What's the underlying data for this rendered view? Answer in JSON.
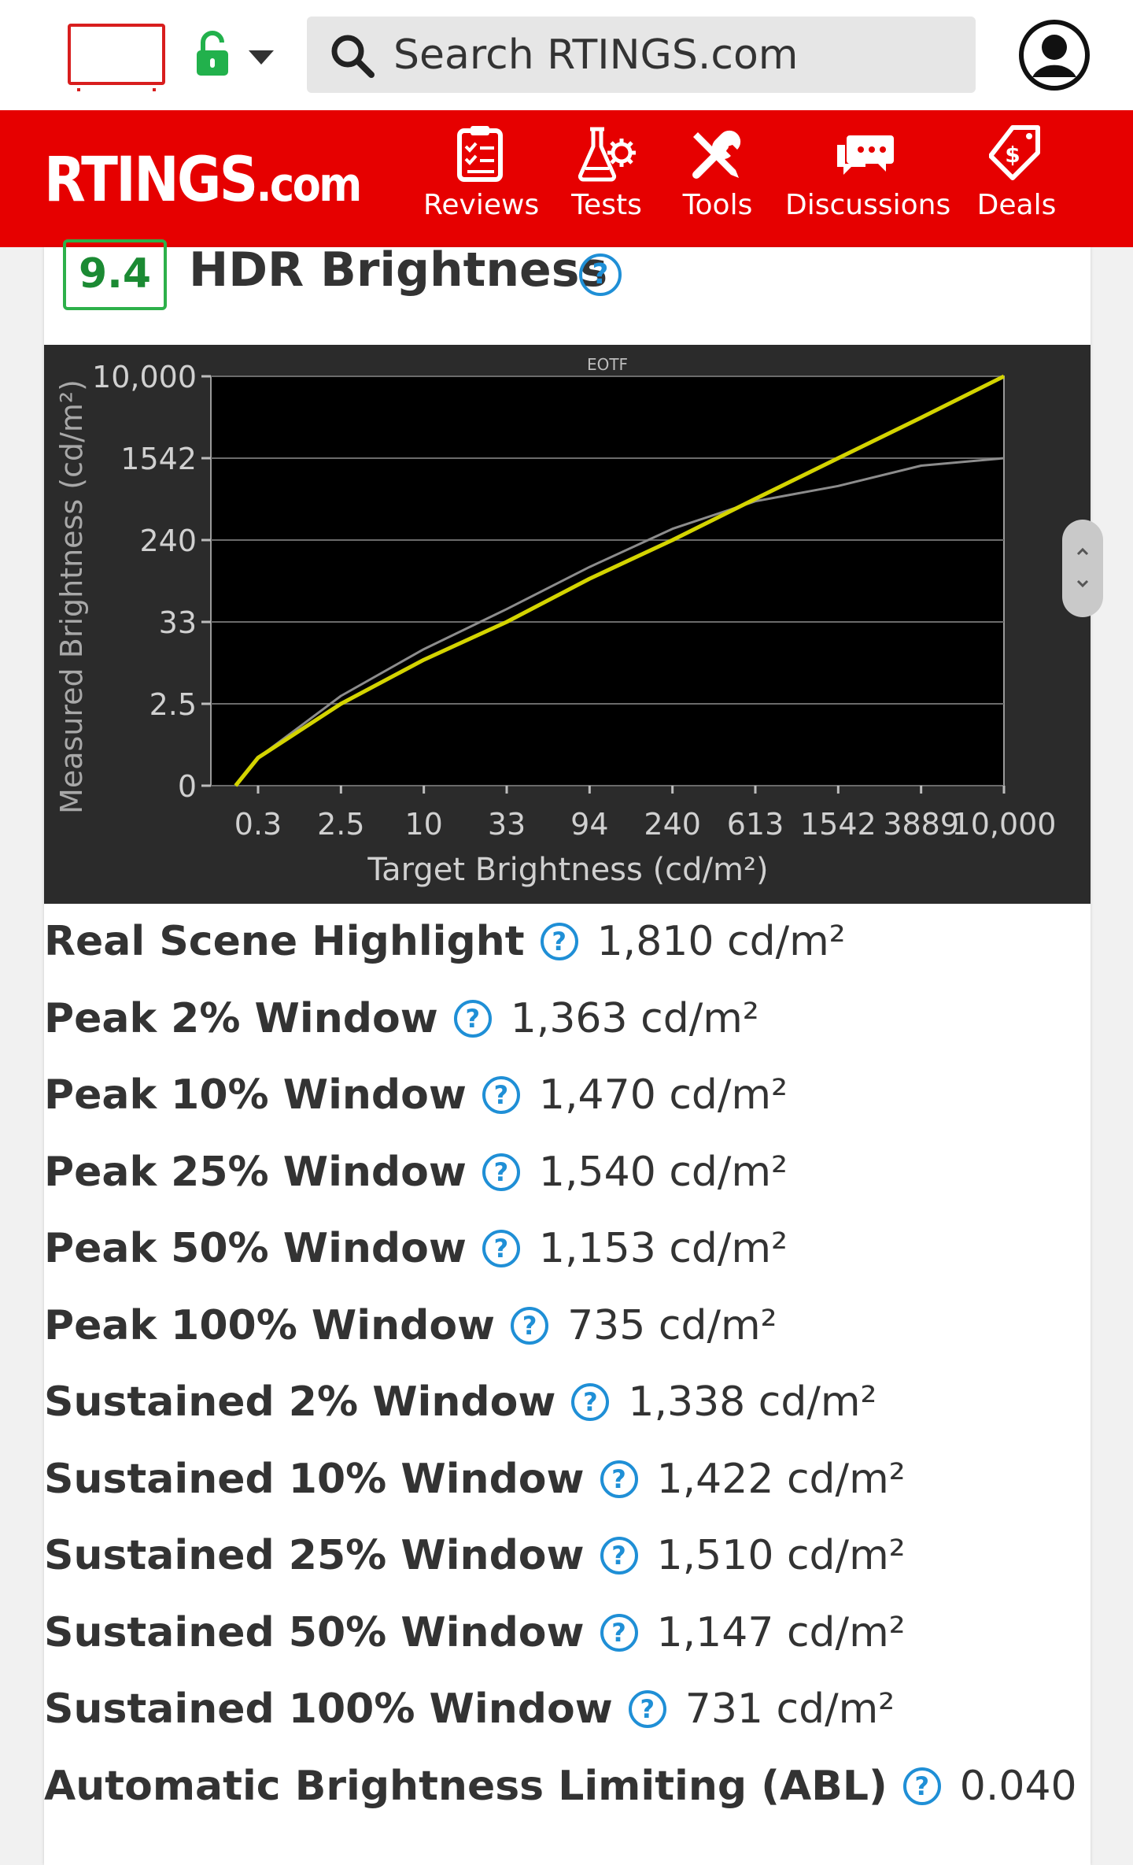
{
  "header": {
    "search_placeholder": "Search RTINGS.com",
    "icons": [
      "tv-icon",
      "lock-icon",
      "caret-down-icon",
      "search-icon",
      "account-icon"
    ]
  },
  "nav": {
    "logo_main": "RTINGS",
    "logo_suffix": ".com",
    "items": [
      {
        "label": "Reviews",
        "icon": "clipboard-icon"
      },
      {
        "label": "Tests",
        "icon": "beaker-gear-icon"
      },
      {
        "label": "Tools",
        "icon": "tools-icon"
      },
      {
        "label": "Discussions",
        "icon": "chat-bubbles-icon"
      },
      {
        "label": "Deals",
        "icon": "price-tag-icon"
      }
    ]
  },
  "section": {
    "score": "9.4",
    "title": "HDR Brightness",
    "help_glyph": "?"
  },
  "chart_data": {
    "type": "line",
    "title": "EOTF",
    "xlabel": "Target Brightness (cd/m²)",
    "ylabel": "Measured Brightness (cd/m²)",
    "x_ticks": [
      "0.3",
      "2.5",
      "10",
      "33",
      "94",
      "240",
      "613",
      "1542",
      "3889",
      "10,000"
    ],
    "y_ticks": [
      "0",
      "2.5",
      "33",
      "240",
      "1542",
      "10,000"
    ],
    "grid": true,
    "colors": {
      "target": "#d4d400",
      "measured": "#8c8c8c",
      "background": "#2b2b2b",
      "plot": "#000000"
    },
    "series": [
      {
        "x": [
          0.1,
          0.3,
          2.5,
          10,
          33,
          94,
          240,
          613,
          1542,
          3889,
          10000
        ],
        "y": [
          0.1,
          0.3,
          2.5,
          10,
          33,
          94,
          240,
          613,
          1542,
          3889,
          10000
        ]
      },
      {
        "x": [
          0.1,
          0.3,
          2.5,
          10,
          33,
          94,
          240,
          613,
          1542,
          3889,
          10000
        ],
        "y": [
          0.1,
          0.3,
          3.2,
          14,
          45,
          125,
          310,
          580,
          820,
          1300,
          1542
        ]
      }
    ]
  },
  "stats": [
    {
      "label": "Real Scene Highlight",
      "value": "1,810 cd/m²"
    },
    {
      "label": "Peak 2% Window",
      "value": "1,363 cd/m²"
    },
    {
      "label": "Peak 10% Window",
      "value": "1,470 cd/m²"
    },
    {
      "label": "Peak 25% Window",
      "value": "1,540 cd/m²"
    },
    {
      "label": "Peak 50% Window",
      "value": "1,153 cd/m²"
    },
    {
      "label": "Peak 100% Window",
      "value": "735 cd/m²"
    },
    {
      "label": "Sustained 2% Window",
      "value": "1,338 cd/m²"
    },
    {
      "label": "Sustained 10% Window",
      "value": "1,422 cd/m²"
    },
    {
      "label": "Sustained 25% Window",
      "value": "1,510 cd/m²"
    },
    {
      "label": "Sustained 50% Window",
      "value": "1,147 cd/m²"
    },
    {
      "label": "Sustained 100% Window",
      "value": "731 cd/m²"
    },
    {
      "label": "Automatic Brightness Limiting (ABL)",
      "value": "0.040"
    }
  ],
  "colors": {
    "brand_red": "#e60000",
    "score_green": "#2db04a",
    "help_blue": "#1f8fd6"
  }
}
